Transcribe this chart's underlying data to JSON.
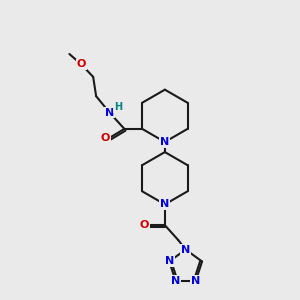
{
  "bg_color": "#eaeaea",
  "bond_color": "#1a1a1a",
  "N_color": "#0000dd",
  "O_color": "#cc0000",
  "H_color": "#008080",
  "line_width": 1.5,
  "font_size": 8.0,
  "figsize": [
    3.0,
    3.0
  ],
  "dpi": 100,
  "xlim": [
    0,
    10
  ],
  "ylim": [
    0,
    10
  ]
}
